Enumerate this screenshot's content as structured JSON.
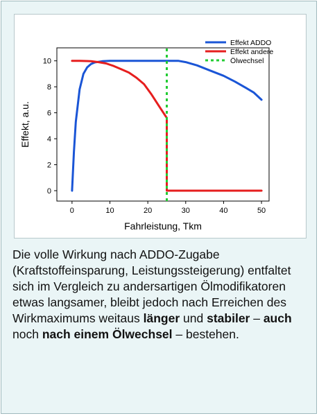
{
  "chart_data": {
    "type": "line",
    "xlabel": "Fahrleistung, Tkm",
    "ylabel": "Effekt, a.u.",
    "xlim": [
      -4,
      52
    ],
    "ylim": [
      -0.8,
      11
    ],
    "xticks": [
      0,
      10,
      20,
      30,
      40,
      50
    ],
    "yticks": [
      0,
      2,
      4,
      6,
      8,
      10
    ],
    "grid": false,
    "legend_position": "top-right",
    "series": [
      {
        "name": "Effekt ADDO",
        "color": "#1a55d6",
        "style": "solid",
        "points": [
          [
            0,
            0
          ],
          [
            0.5,
            3
          ],
          [
            1,
            5.3
          ],
          [
            2,
            7.8
          ],
          [
            3,
            9
          ],
          [
            4,
            9.5
          ],
          [
            5,
            9.75
          ],
          [
            6,
            9.88
          ],
          [
            8,
            9.97
          ],
          [
            10,
            10
          ],
          [
            15,
            10
          ],
          [
            20,
            10
          ],
          [
            25,
            10
          ],
          [
            28,
            10
          ],
          [
            30,
            9.9
          ],
          [
            33,
            9.65
          ],
          [
            36,
            9.3
          ],
          [
            40,
            8.85
          ],
          [
            43,
            8.4
          ],
          [
            46,
            7.9
          ],
          [
            48,
            7.55
          ],
          [
            50,
            7
          ]
        ]
      },
      {
        "name": "Effekt andere",
        "color": "#e61e1e",
        "style": "solid",
        "points": [
          [
            0,
            10
          ],
          [
            2,
            10
          ],
          [
            5,
            9.97
          ],
          [
            7,
            9.9
          ],
          [
            9,
            9.8
          ],
          [
            11,
            9.6
          ],
          [
            13,
            9.35
          ],
          [
            15,
            9.1
          ],
          [
            17,
            8.7
          ],
          [
            19,
            8.2
          ],
          [
            21,
            7.4
          ],
          [
            23,
            6.5
          ],
          [
            25,
            5.6
          ],
          [
            25,
            0
          ],
          [
            30,
            0
          ],
          [
            40,
            0
          ],
          [
            50,
            0
          ]
        ]
      },
      {
        "name": "Ölwechsel",
        "color": "#22cc33",
        "style": "dotted",
        "points": [
          [
            25,
            -0.8
          ],
          [
            25,
            11
          ]
        ]
      }
    ]
  },
  "caption": {
    "text1": "Die volle Wirkung nach ADDO-Zugabe (Kraftstoffeinsparung, Leistungssteigerung) entfaltet sich im Vergleich zu andersartigen Ölmodifikatoren etwas langsamer, bleibt jedoch nach Erreichen des Wirkmaximums weitaus ",
    "bold1": "länger",
    "text2": " und ",
    "bold2": "stabiler",
    "text3": " – ",
    "bold3": "auch",
    "text4": " noch ",
    "bold4": "nach einem Ölwechsel",
    "text5": " – bestehen."
  },
  "colors": {
    "card_background": "#eaf5f6",
    "card_border": "#9fb9bd"
  }
}
